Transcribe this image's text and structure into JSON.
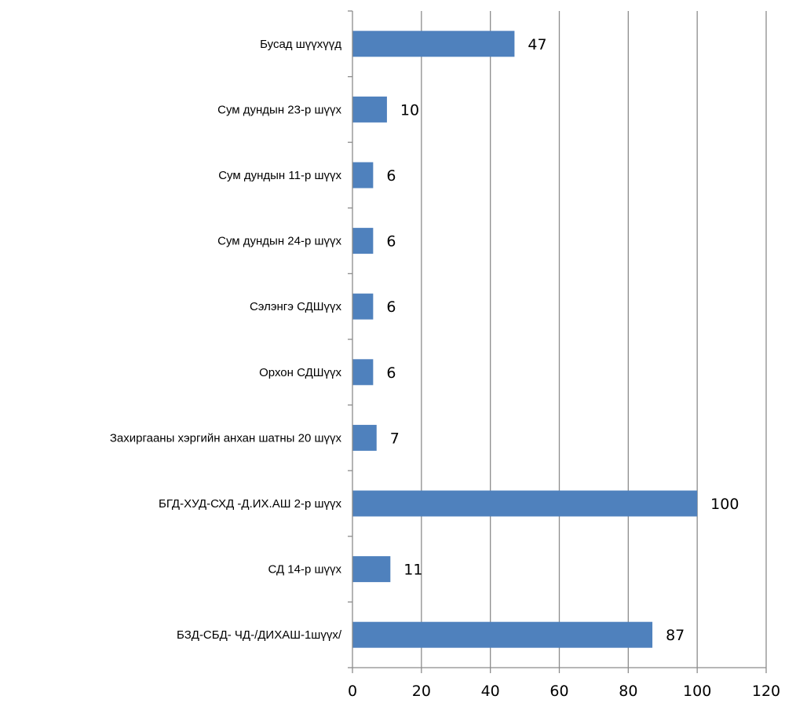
{
  "chart_data": {
    "type": "bar",
    "orientation": "horizontal",
    "title": "",
    "xlabel": "",
    "ylabel": "",
    "xlim": [
      0,
      120
    ],
    "x_ticks": [
      0,
      20,
      40,
      60,
      80,
      100,
      120
    ],
    "grid": true,
    "legend": "none",
    "bar_color": "#4f81bd",
    "gridline_color": "#8c8c8c",
    "categories": [
      "Бусад шүүхүүд",
      "Сум дундын 23-р шүүх",
      "Сум дундын 11-р шүүх",
      "Сум дундын 24-р шүүх",
      "Сэлэнгэ СДШүүх",
      "Орхон СДШүүх",
      "Захиргааны хэргийн анхан шатны 20 шүүх",
      "БГД-ХУД-СХД -Д.ИХ.АШ 2-р шүүх",
      "СД 14-р шүүх",
      "БЗД-СБД- ЧД-/ДИХАШ-1шүүх/"
    ],
    "values": [
      47,
      10,
      6,
      6,
      6,
      6,
      7,
      100,
      11,
      87
    ],
    "data_labels": [
      "47",
      "10",
      "6",
      "6",
      "6",
      "6",
      "7",
      "100",
      "11",
      "87"
    ]
  }
}
